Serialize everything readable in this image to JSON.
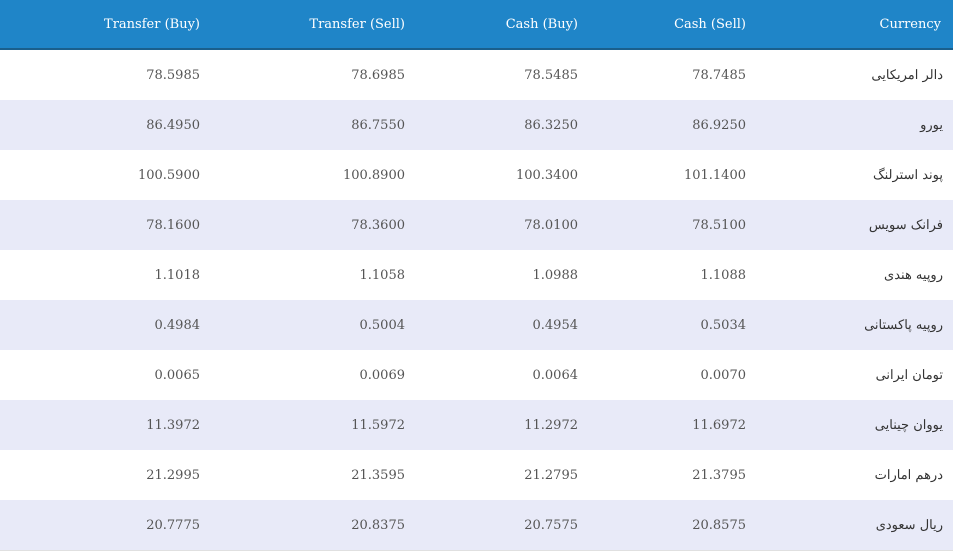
{
  "header": {
    "columns": [
      "Transfer (Buy)",
      "Transfer (Sell)",
      "Cash (Buy)",
      "Cash (Sell)",
      "Currency"
    ]
  },
  "rows": [
    {
      "transfer_buy": "78.5985",
      "transfer_sell": "78.6985",
      "cash_buy": "78.5485",
      "cash_sell": "78.7485",
      "currency": "دالر امریکایی"
    },
    {
      "transfer_buy": "86.4950",
      "transfer_sell": "86.7550",
      "cash_buy": "86.3250",
      "cash_sell": "86.9250",
      "currency": "یورو"
    },
    {
      "transfer_buy": "100.5900",
      "transfer_sell": "100.8900",
      "cash_buy": "100.3400",
      "cash_sell": "101.1400",
      "currency": "پوند استرلنگ"
    },
    {
      "transfer_buy": "78.1600",
      "transfer_sell": "78.3600",
      "cash_buy": "78.0100",
      "cash_sell": "78.5100",
      "currency": "فرانک سویس"
    },
    {
      "transfer_buy": "1.1018",
      "transfer_sell": "1.1058",
      "cash_buy": "1.0988",
      "cash_sell": "1.1088",
      "currency": "روپیه هندی"
    },
    {
      "transfer_buy": "0.4984",
      "transfer_sell": "0.5004",
      "cash_buy": "0.4954",
      "cash_sell": "0.5034",
      "currency": "روپیه پاکستانی"
    },
    {
      "transfer_buy": "0.0065",
      "transfer_sell": "0.0069",
      "cash_buy": "0.0064",
      "cash_sell": "0.0070",
      "currency": "تومان ایرانی"
    },
    {
      "transfer_buy": "11.3972",
      "transfer_sell": "11.5972",
      "cash_buy": "11.2972",
      "cash_sell": "11.6972",
      "currency": "یووان چینایی"
    },
    {
      "transfer_buy": "21.2995",
      "transfer_sell": "21.3595",
      "cash_buy": "21.2795",
      "cash_sell": "21.3795",
      "currency": "درهم امارات"
    },
    {
      "transfer_buy": "20.7775",
      "transfer_sell": "20.8375",
      "cash_buy": "20.7575",
      "cash_sell": "20.8575",
      "currency": "ریال سعودی"
    }
  ],
  "colors": {
    "header_bg": "#1f85c8",
    "stripe_bg": "#e8eaf8"
  }
}
